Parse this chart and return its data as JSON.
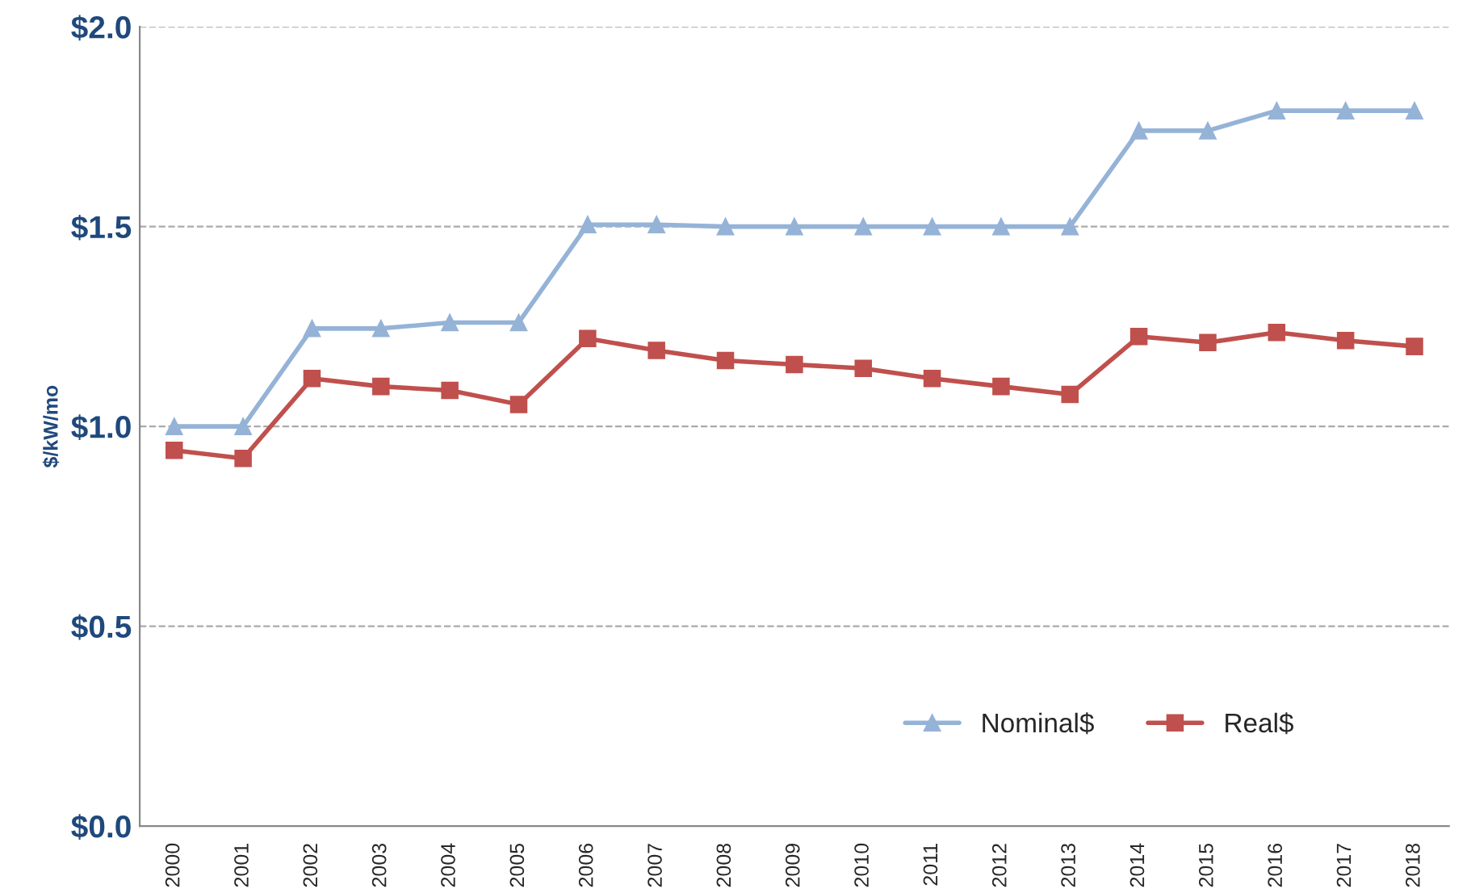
{
  "chart_data": {
    "type": "line",
    "ylabel": "$/kW/mo",
    "categories": [
      "2000",
      "2001",
      "2002",
      "2003",
      "2004",
      "2005",
      "2006",
      "2007",
      "2008",
      "2009",
      "2010",
      "2011",
      "2012",
      "2013",
      "2014",
      "2015",
      "2016",
      "2017",
      "2018"
    ],
    "series": [
      {
        "name": "Nominal$",
        "color": "#95b3d7",
        "marker": "triangle",
        "values": [
          1.0,
          1.0,
          1.245,
          1.245,
          1.26,
          1.26,
          1.505,
          1.505,
          1.5,
          1.5,
          1.5,
          1.5,
          1.5,
          1.5,
          1.74,
          1.74,
          1.79,
          1.79,
          1.79
        ]
      },
      {
        "name": "Real$",
        "color": "#c0504d",
        "marker": "square",
        "values": [
          0.94,
          0.92,
          1.12,
          1.1,
          1.09,
          1.055,
          1.22,
          1.19,
          1.165,
          1.155,
          1.145,
          1.12,
          1.1,
          1.08,
          1.225,
          1.21,
          1.235,
          1.215,
          1.2
        ]
      }
    ],
    "ylim": [
      0,
      2.0
    ],
    "yticks": [
      {
        "value": 0,
        "label": "$0.0"
      },
      {
        "value": 0.5,
        "label": "$0.5"
      },
      {
        "value": 1.0,
        "label": "$1.0"
      },
      {
        "value": 1.5,
        "label": "$1.5"
      },
      {
        "value": 2.0,
        "label": "$2.0"
      }
    ],
    "grid": "y",
    "legend": "bottom right",
    "line_style": "solid"
  }
}
